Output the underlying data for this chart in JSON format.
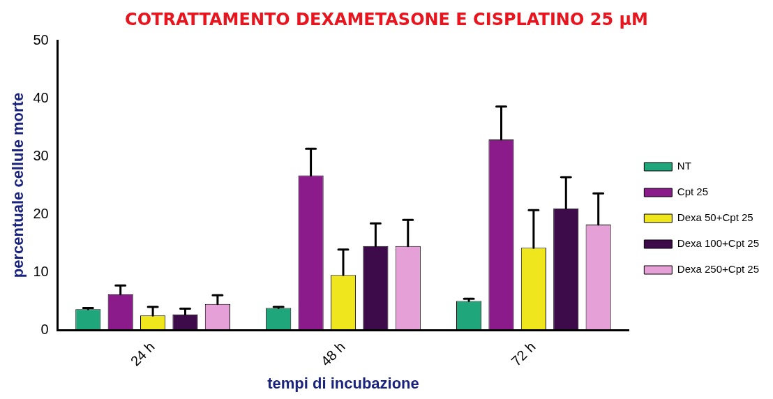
{
  "chart_data": {
    "type": "bar",
    "title": "COTRATTAMENTO DEXAMETASONE E CISPLATINO 25 µM",
    "xlabel": "tempi di incubazione",
    "ylabel": "percentuale cellule morte",
    "categories": [
      "24 h",
      "48 h",
      "72 h"
    ],
    "series": [
      {
        "name": "NT",
        "color": "#1fa67a",
        "values": [
          3.6,
          3.8,
          5.0
        ],
        "errors": [
          [
            3.6,
            3.8
          ],
          [
            3.8,
            4.0
          ],
          [
            5.0,
            5.4
          ]
        ]
      },
      {
        "name": "Cpt 25",
        "color": "#8b1a8b",
        "values": [
          6.2,
          26.7,
          32.9
        ],
        "errors": [
          [
            6.2,
            7.7
          ],
          [
            26.7,
            31.3
          ],
          [
            32.9,
            38.6
          ]
        ]
      },
      {
        "name": "Dexa 50+Cpt 25",
        "color": "#f0e61e",
        "values": [
          2.5,
          9.5,
          14.2
        ],
        "errors": [
          [
            2.5,
            4.0
          ],
          [
            9.5,
            13.9
          ],
          [
            14.2,
            20.7
          ]
        ]
      },
      {
        "name": "Dexa 100+Cpt 25",
        "color": "#3d0a4a",
        "values": [
          2.7,
          14.5,
          21.0
        ],
        "errors": [
          [
            2.7,
            3.7
          ],
          [
            14.5,
            18.4
          ],
          [
            21.0,
            26.4
          ]
        ]
      },
      {
        "name": "Dexa 250+Cpt 25",
        "color": "#e6a0d8",
        "values": [
          4.5,
          14.5,
          18.2
        ],
        "errors": [
          [
            4.5,
            6.0
          ],
          [
            14.5,
            19.0
          ],
          [
            18.2,
            23.6
          ]
        ]
      }
    ],
    "ylim": [
      0,
      50
    ],
    "yticks": [
      0,
      10,
      20,
      30,
      40,
      50
    ],
    "grid": false,
    "legend": "right"
  }
}
